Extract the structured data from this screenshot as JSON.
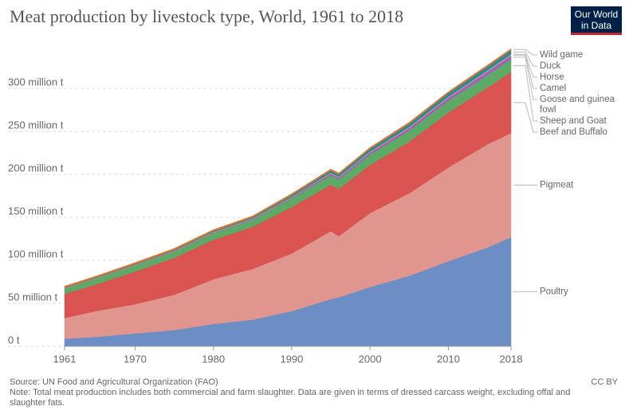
{
  "chart_data": {
    "type": "stacked_area",
    "title": "Meat production by livestock type, World, 1961 to 2018",
    "logo": [
      "Our World",
      "in Data"
    ],
    "source": "Source: UN Food and Agricultural Organization (FAO)",
    "note": "Note: Total meat production includes both commercial and farm slaughter. Data are given in terms of dressed carcass weight, excluding offal and slaughter fats.",
    "license": "CC BY",
    "x": [
      1961,
      1965,
      1970,
      1975,
      1980,
      1985,
      1990,
      1995,
      1996,
      2000,
      2005,
      2010,
      2015,
      2018
    ],
    "xlim": [
      1961,
      2018
    ],
    "xticks": [
      1961,
      1970,
      1980,
      1990,
      2000,
      2010,
      2018
    ],
    "ylim": [
      0,
      350
    ],
    "yticks": [
      {
        "value": 0,
        "label": "0 t"
      },
      {
        "value": 50,
        "label": "50 million t"
      },
      {
        "value": 100,
        "label": "100 million t"
      },
      {
        "value": 150,
        "label": "150 million t"
      },
      {
        "value": 200,
        "label": "200 million t"
      },
      {
        "value": 250,
        "label": "250 million t"
      },
      {
        "value": 300,
        "label": "300 million t"
      }
    ],
    "grid": true,
    "series": [
      {
        "name": "Poultry",
        "color": "#6d8ec5",
        "values": [
          9,
          11,
          15,
          19,
          26,
          31,
          41,
          55,
          57,
          69,
          82,
          99,
          115,
          127
        ]
      },
      {
        "name": "Pigmeat",
        "color": "#e0968f",
        "values": [
          24,
          30,
          34,
          41,
          52,
          59,
          67,
          79,
          71,
          86,
          96,
          109,
          120,
          121
        ]
      },
      {
        "name": "Beef and Buffalo",
        "color": "#d95350",
        "values": [
          28,
          31,
          38,
          43,
          46,
          49,
          54,
          54,
          55,
          56,
          60,
          64,
          66,
          71
        ]
      },
      {
        "name": "Sheep and Goat",
        "color": "#5caa65",
        "values": [
          6,
          6.5,
          7,
          7,
          7.5,
          8,
          10,
          11,
          11,
          12,
          13,
          13.5,
          14.5,
          15
        ]
      },
      {
        "name": "Goose and guinea fowl",
        "color": "#a45ec0",
        "values": [
          0.3,
          0.4,
          0.5,
          0.6,
          0.7,
          0.9,
          1.2,
          2,
          2.2,
          2.6,
          3.1,
          3.6,
          4.1,
          4.4
        ]
      },
      {
        "name": "Camel",
        "color": "#e8c84a",
        "values": [
          0.2,
          0.2,
          0.2,
          0.3,
          0.3,
          0.3,
          0.3,
          0.4,
          0.4,
          0.4,
          0.5,
          0.5,
          0.6,
          0.6
        ]
      },
      {
        "name": "Horse",
        "color": "#8f8f8f",
        "values": [
          0.5,
          0.5,
          0.5,
          0.5,
          0.6,
          0.6,
          0.6,
          0.7,
          0.7,
          0.7,
          0.7,
          0.8,
          0.9,
          0.9
        ]
      },
      {
        "name": "Duck",
        "color": "#2a8a98",
        "values": [
          0.5,
          0.6,
          0.7,
          0.9,
          1,
          1.3,
          1.8,
          2.4,
          2.6,
          3,
          3.5,
          4,
          4.3,
          4.4
        ]
      },
      {
        "name": "Wild game",
        "color": "#e0752b",
        "values": [
          1.5,
          1.5,
          1.5,
          1.6,
          1.6,
          1.6,
          1.7,
          1.7,
          1.7,
          1.7,
          1.8,
          1.8,
          1.8,
          1.8
        ]
      }
    ]
  }
}
